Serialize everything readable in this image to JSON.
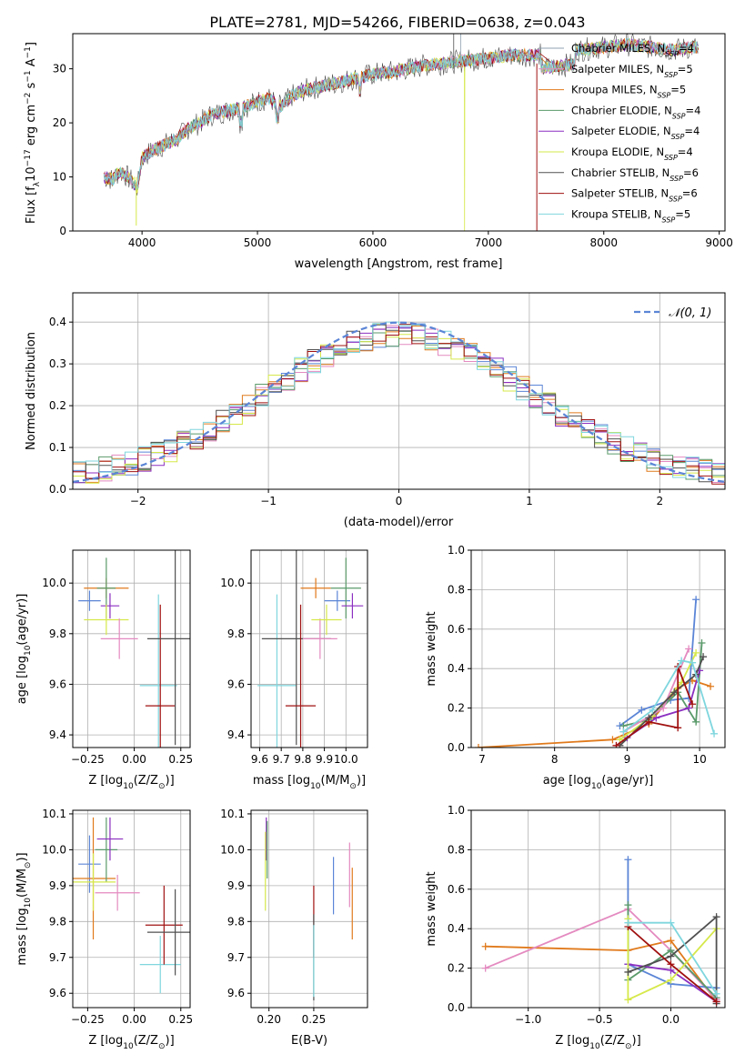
{
  "colors": {
    "Chabrier MILES": "#8fa0b0",
    "Salpeter MILES": "#e48ac0",
    "Kroupa MILES": "#e07a1c",
    "Chabrier ELODIE": "#5a9a6a",
    "Salpeter ELODIE": "#8b2fc0",
    "Kroupa ELODIE": "#d6e84a",
    "Chabrier STELIB": "#505050",
    "Salpeter STELIB": "#a01010",
    "Kroupa STELIB": "#7fd6de",
    "extra": "#5b85d6"
  },
  "chart_data": [
    {
      "id": "spectrum",
      "type": "line",
      "title": "PLATE=2781, MJD=54266, FIBERID=0638, z=0.043",
      "xlabel": "wavelength [Angstrom, rest frame]",
      "ylabel_parts": [
        "Flux [f",
        "λ",
        "10",
        "−17",
        " erg cm",
        "−2",
        " s",
        "−1",
        " A",
        "−1",
        "]"
      ],
      "xlim": [
        3400,
        9050
      ],
      "ylim": [
        0,
        36.5
      ],
      "xticks": [
        4000,
        5000,
        6000,
        7000,
        8000,
        9000
      ],
      "yticks": [
        0,
        10,
        20,
        30
      ],
      "spectrum_points": [
        [
          3670,
          10
        ],
        [
          3750,
          9.5
        ],
        [
          3800,
          11
        ],
        [
          3850,
          10.5
        ],
        [
          3920,
          9
        ],
        [
          3960,
          8
        ],
        [
          4000,
          13.5
        ],
        [
          4100,
          15
        ],
        [
          4200,
          16
        ],
        [
          4300,
          17
        ],
        [
          4400,
          19
        ],
        [
          4500,
          20
        ],
        [
          4600,
          21.5
        ],
        [
          4700,
          22
        ],
        [
          4800,
          22.5
        ],
        [
          4900,
          23
        ],
        [
          5000,
          24
        ],
        [
          5100,
          24.5
        ],
        [
          5200,
          23
        ],
        [
          5300,
          25
        ],
        [
          5400,
          26
        ],
        [
          5500,
          26.5
        ],
        [
          5600,
          27
        ],
        [
          5700,
          27.5
        ],
        [
          5800,
          28
        ],
        [
          5900,
          28.5
        ],
        [
          6000,
          29
        ],
        [
          6200,
          29.5
        ],
        [
          6400,
          30.5
        ],
        [
          6600,
          31
        ],
        [
          6800,
          31.5
        ],
        [
          7000,
          32
        ],
        [
          7200,
          32.5
        ],
        [
          7400,
          32.5
        ],
        [
          7600,
          33
        ],
        [
          7800,
          33.5
        ],
        [
          8000,
          34
        ],
        [
          8200,
          34.5
        ],
        [
          8400,
          34
        ],
        [
          8600,
          33.5
        ],
        [
          8800,
          34
        ]
      ],
      "legend": [
        {
          "name": "Chabrier MILES",
          "n": "4"
        },
        {
          "name": "Salpeter MILES",
          "n": "5"
        },
        {
          "name": "Kroupa MILES",
          "n": "5"
        },
        {
          "name": "Chabrier ELODIE",
          "n": "4"
        },
        {
          "name": "Salpeter ELODIE",
          "n": "4"
        },
        {
          "name": "Kroupa ELODIE",
          "n": "4"
        },
        {
          "name": "Chabrier STELIB",
          "n": "6"
        },
        {
          "name": "Salpeter STELIB",
          "n": "6"
        },
        {
          "name": "Kroupa STELIB",
          "n": "5"
        }
      ],
      "legend_placement": "upper-right"
    },
    {
      "id": "residuals",
      "type": "histogram",
      "xlabel": "(data-model)/error",
      "ylabel": "Normed distribution",
      "xlim": [
        -2.5,
        2.5
      ],
      "ylim": [
        0,
        0.47
      ],
      "xticks": [
        -2,
        -1,
        0,
        1,
        2
      ],
      "yticks": [
        0.0,
        0.1,
        0.2,
        0.3,
        0.4
      ],
      "grid": true,
      "legend": "𝒩(0, 1)",
      "legend_placement": "upper-right",
      "bin_width": 0.1
    },
    {
      "id": "age-vs-Z",
      "type": "scatter",
      "xlabel_parts": [
        "Z [log",
        "10",
        "(Z/Z",
        "⊙",
        ")]"
      ],
      "ylabel_parts": [
        "age  [log",
        "10",
        "(age/yr)]"
      ],
      "xlim": [
        -0.33,
        0.3
      ],
      "ylim": [
        9.35,
        10.13
      ],
      "xticks": [
        -0.25,
        0.0,
        0.25
      ],
      "yticks": [
        9.4,
        9.6,
        9.8,
        10.0
      ],
      "grid": true,
      "points": [
        {
          "series": "extra",
          "x": -0.24,
          "y": 9.93,
          "xerr": 0.06,
          "yerr": 0.04
        },
        {
          "series": "Kroupa MILES",
          "x": -0.15,
          "y": 9.98,
          "xerr": 0.12,
          "yerr": 0.04
        },
        {
          "series": "Chabrier ELODIE",
          "x": -0.15,
          "y": 9.98,
          "xerr": 0.05,
          "yerr": 0.12
        },
        {
          "series": "Salpeter ELODIE",
          "x": -0.13,
          "y": 9.91,
          "xerr": 0.05,
          "yerr": 0.05
        },
        {
          "series": "Kroupa ELODIE",
          "x": -0.15,
          "y": 9.855,
          "xerr": 0.12,
          "yerr": 0.06
        },
        {
          "series": "Salpeter MILES",
          "x": -0.08,
          "y": 9.78,
          "xerr": 0.1,
          "yerr": 0.08
        },
        {
          "series": "Kroupa STELIB",
          "x": 0.13,
          "y": 9.595,
          "xerr": 0.1,
          "yerr": 0.36
        },
        {
          "series": "Salpeter STELIB",
          "x": 0.14,
          "y": 9.515,
          "xerr": 0.08,
          "yerr": 0.4
        },
        {
          "series": "Chabrier STELIB",
          "x": 0.22,
          "y": 9.78,
          "xerr": 0.15,
          "yerr": 0.42
        }
      ]
    },
    {
      "id": "age-vs-mass",
      "type": "scatter",
      "xlabel_parts": [
        "mass [log",
        "10",
        "(M/M",
        "⊙",
        ")]"
      ],
      "xlim": [
        9.56,
        10.1
      ],
      "ylim": [
        9.35,
        10.13
      ],
      "xticks": [
        9.6,
        9.7,
        9.8,
        9.9,
        10.0
      ],
      "yticks": [
        9.4,
        9.6,
        9.8,
        10.0
      ],
      "grid": true,
      "points": [
        {
          "series": "Kroupa STELIB",
          "x": 9.68,
          "y": 9.595,
          "xerr": 0.09,
          "yerr": 0.36
        },
        {
          "series": "Chabrier STELIB",
          "x": 9.77,
          "y": 9.78,
          "xerr": 0.16,
          "yerr": 0.42
        },
        {
          "series": "Salpeter STELIB",
          "x": 9.79,
          "y": 9.515,
          "xerr": 0.07,
          "yerr": 0.4
        },
        {
          "series": "Kroupa MILES",
          "x": 9.86,
          "y": 9.98,
          "xerr": 0.07,
          "yerr": 0.04
        },
        {
          "series": "Salpeter MILES",
          "x": 9.88,
          "y": 9.78,
          "xerr": 0.08,
          "yerr": 0.08
        },
        {
          "series": "Kroupa ELODIE",
          "x": 9.91,
          "y": 9.855,
          "xerr": 0.07,
          "yerr": 0.06
        },
        {
          "series": "extra",
          "x": 9.96,
          "y": 9.93,
          "xerr": 0.06,
          "yerr": 0.04
        },
        {
          "series": "Chabrier ELODIE",
          "x": 10.0,
          "y": 9.98,
          "xerr": 0.07,
          "yerr": 0.12
        },
        {
          "series": "Salpeter ELODIE",
          "x": 10.03,
          "y": 9.91,
          "xerr": 0.05,
          "yerr": 0.05
        }
      ]
    },
    {
      "id": "weight-vs-age",
      "type": "line",
      "xlabel_parts": [
        "age  [log",
        "10",
        "(age/yr)]"
      ],
      "ylabel": "mass weight",
      "xlim": [
        6.85,
        10.35
      ],
      "ylim": [
        0,
        1.0
      ],
      "xticks": [
        7,
        8,
        9,
        10
      ],
      "yticks": [
        0.0,
        0.2,
        0.4,
        0.6,
        0.8,
        1.0
      ],
      "grid": true,
      "series": [
        {
          "name": "Kroupa MILES",
          "points": [
            [
              6.95,
              0.0
            ],
            [
              8.8,
              0.04
            ],
            [
              9.3,
              0.12
            ],
            [
              9.7,
              0.3
            ],
            [
              9.9,
              0.34
            ],
            [
              10.15,
              0.31
            ]
          ]
        },
        {
          "name": "extra",
          "points": [
            [
              8.9,
              0.11
            ],
            [
              9.2,
              0.19
            ],
            [
              9.6,
              0.24
            ],
            [
              9.85,
              0.25
            ],
            [
              9.95,
              0.75
            ]
          ]
        },
        {
          "name": "Chabrier ELODIE",
          "points": [
            [
              8.95,
              0.11
            ],
            [
              9.3,
              0.14
            ],
            [
              9.7,
              0.28
            ],
            [
              9.95,
              0.13
            ],
            [
              10.03,
              0.53
            ]
          ]
        },
        {
          "name": "Salpeter ELODIE",
          "points": [
            [
              9.0,
              0.05
            ],
            [
              9.4,
              0.15
            ],
            [
              9.85,
              0.2
            ],
            [
              10.0,
              0.39
            ]
          ]
        },
        {
          "name": "Kroupa ELODIE",
          "points": [
            [
              8.9,
              0.04
            ],
            [
              9.35,
              0.16
            ],
            [
              9.75,
              0.33
            ],
            [
              9.95,
              0.48
            ]
          ]
        },
        {
          "name": "Salpeter MILES",
          "points": [
            [
              8.95,
              0.08
            ],
            [
              9.5,
              0.2
            ],
            [
              9.85,
              0.5
            ]
          ]
        },
        {
          "name": "Chabrier STELIB",
          "points": [
            [
              8.9,
              0.01
            ],
            [
              9.3,
              0.15
            ],
            [
              9.65,
              0.28
            ],
            [
              9.95,
              0.37
            ],
            [
              10.05,
              0.46
            ]
          ]
        },
        {
          "name": "Salpeter STELIB",
          "points": [
            [
              8.85,
              0.01
            ],
            [
              9.3,
              0.13
            ],
            [
              9.7,
              0.1
            ],
            [
              9.7,
              0.41
            ],
            [
              9.9,
              0.22
            ]
          ]
        },
        {
          "name": "Kroupa STELIB",
          "points": [
            [
              8.95,
              0.08
            ],
            [
              9.35,
              0.19
            ],
            [
              9.75,
              0.44
            ],
            [
              9.9,
              0.43
            ],
            [
              10.2,
              0.07
            ]
          ]
        }
      ]
    },
    {
      "id": "mass-vs-Z",
      "type": "scatter",
      "xlabel_parts": [
        "Z [log",
        "10",
        "(Z/Z",
        "⊙",
        ")]"
      ],
      "ylabel_parts": [
        "mass [log",
        "10",
        "(M/M",
        "⊙",
        ")]"
      ],
      "xlim": [
        -0.33,
        0.3
      ],
      "ylim": [
        9.56,
        10.11
      ],
      "xticks": [
        -0.25,
        0.0,
        0.25
      ],
      "yticks": [
        9.6,
        9.7,
        9.8,
        9.9,
        10.0,
        10.1
      ],
      "grid": true,
      "points": [
        {
          "series": "extra",
          "x": -0.24,
          "y": 9.96,
          "xerr": 0.06,
          "yerr": 0.08
        },
        {
          "series": "Kroupa MILES",
          "x": -0.22,
          "y": 9.92,
          "xerr": 0.12,
          "yerr": 0.17
        },
        {
          "series": "Chabrier ELODIE",
          "x": -0.15,
          "y": 10.0,
          "xerr": 0.06,
          "yerr": 0.09
        },
        {
          "series": "Salpeter ELODIE",
          "x": -0.13,
          "y": 10.03,
          "xerr": 0.07,
          "yerr": 0.06
        },
        {
          "series": "Kroupa ELODIE",
          "x": -0.22,
          "y": 9.91,
          "xerr": 0.12,
          "yerr": 0.08
        },
        {
          "series": "Salpeter MILES",
          "x": -0.09,
          "y": 9.88,
          "xerr": 0.12,
          "yerr": 0.05
        },
        {
          "series": "Kroupa STELIB",
          "x": 0.14,
          "y": 9.68,
          "xerr": 0.11,
          "yerr": 0.08
        },
        {
          "series": "Salpeter STELIB",
          "x": 0.16,
          "y": 9.79,
          "xerr": 0.1,
          "yerr": 0.11
        },
        {
          "series": "Chabrier STELIB",
          "x": 0.22,
          "y": 9.77,
          "xerr": 0.15,
          "yerr": 0.12
        }
      ]
    },
    {
      "id": "mass-vs-EBV",
      "type": "scatter",
      "xlabel": "E(B-V)",
      "xlim": [
        0.18,
        0.31
      ],
      "ylim": [
        9.56,
        10.11
      ],
      "xticks": [
        0.2,
        0.25
      ],
      "yticks": [
        9.6,
        9.7,
        9.8,
        9.9,
        10.0,
        10.1
      ],
      "grid": true,
      "points": [
        {
          "series": "Salpeter ELODIE",
          "x": 0.197,
          "y": 10.03,
          "xerr": 0.0,
          "yerr": 0.06
        },
        {
          "series": "Chabrier ELODIE",
          "x": 0.198,
          "y": 10.0,
          "xerr": 0.0,
          "yerr": 0.08
        },
        {
          "series": "Kroupa ELODIE",
          "x": 0.196,
          "y": 9.94,
          "xerr": 0.0,
          "yerr": 0.11
        },
        {
          "series": "Salpeter STELIB",
          "x": 0.25,
          "y": 9.8,
          "xerr": 0.0,
          "yerr": 0.1
        },
        {
          "series": "Chabrier STELIB",
          "x": 0.25,
          "y": 9.7,
          "xerr": 0.0,
          "yerr": 0.12
        },
        {
          "series": "Kroupa STELIB",
          "x": 0.25,
          "y": 9.69,
          "xerr": 0.0,
          "yerr": 0.1
        },
        {
          "series": "extra",
          "x": 0.272,
          "y": 9.9,
          "xerr": 0.0,
          "yerr": 0.08
        },
        {
          "series": "Salpeter MILES",
          "x": 0.29,
          "y": 9.93,
          "xerr": 0.0,
          "yerr": 0.09
        },
        {
          "series": "Kroupa MILES",
          "x": 0.293,
          "y": 9.85,
          "xerr": 0.0,
          "yerr": 0.1
        }
      ]
    },
    {
      "id": "weight-vs-Z",
      "type": "line",
      "xlabel_parts": [
        "Z [log",
        "10",
        "(Z/Z",
        "⊙",
        ")]"
      ],
      "ylabel": "mass weight",
      "xlim": [
        -1.4,
        0.38
      ],
      "ylim": [
        0,
        1.0
      ],
      "xticks": [
        -1.0,
        -0.5,
        0.0
      ],
      "yticks": [
        0.0,
        0.2,
        0.4,
        0.6,
        0.8,
        1.0
      ],
      "grid": true,
      "series": [
        {
          "name": "Kroupa MILES",
          "points": [
            [
              -1.3,
              0.31
            ],
            [
              -0.3,
              0.29
            ],
            [
              0.0,
              0.34
            ],
            [
              0.32,
              0.03
            ]
          ]
        },
        {
          "name": "Salpeter MILES",
          "points": [
            [
              -1.3,
              0.2
            ],
            [
              -0.3,
              0.5
            ],
            [
              0.0,
              0.29
            ],
            [
              0.32,
              0.04
            ]
          ]
        },
        {
          "name": "extra",
          "points": [
            [
              -0.3,
              0.75
            ],
            [
              -0.3,
              0.22
            ],
            [
              0.0,
              0.12
            ],
            [
              0.32,
              0.1
            ]
          ]
        },
        {
          "name": "Chabrier ELODIE",
          "points": [
            [
              -0.3,
              0.52
            ],
            [
              -0.3,
              0.14
            ],
            [
              0.0,
              0.29
            ],
            [
              0.32,
              0.05
            ]
          ]
        },
        {
          "name": "Salpeter ELODIE",
          "points": [
            [
              -0.3,
              0.22
            ],
            [
              0.0,
              0.19
            ],
            [
              0.32,
              0.03
            ]
          ]
        },
        {
          "name": "Kroupa ELODIE",
          "points": [
            [
              -0.3,
              0.45
            ],
            [
              -0.3,
              0.04
            ],
            [
              0.0,
              0.14
            ],
            [
              0.32,
              0.4
            ]
          ]
        },
        {
          "name": "Chabrier STELIB",
          "points": [
            [
              -0.3,
              0.18
            ],
            [
              0.0,
              0.26
            ],
            [
              0.32,
              0.46
            ],
            [
              0.32,
              0.02
            ]
          ]
        },
        {
          "name": "Salpeter STELIB",
          "points": [
            [
              -0.3,
              0.41
            ],
            [
              0.0,
              0.22
            ],
            [
              0.32,
              0.03
            ]
          ]
        },
        {
          "name": "Kroupa STELIB",
          "points": [
            [
              -0.3,
              0.43
            ],
            [
              0.0,
              0.43
            ],
            [
              0.32,
              0.07
            ]
          ]
        }
      ]
    }
  ]
}
